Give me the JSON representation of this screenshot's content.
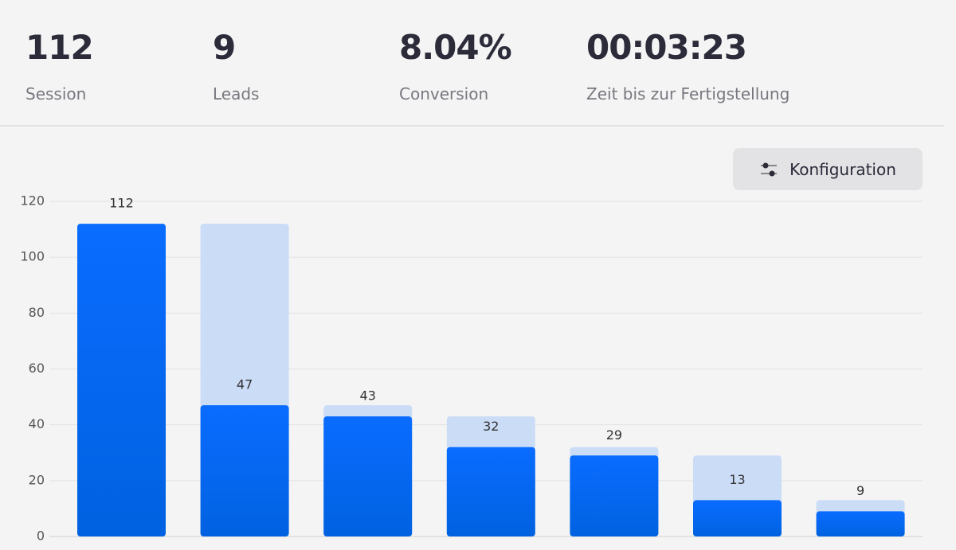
{
  "stats": [
    {
      "value": "112",
      "label": "Session"
    },
    {
      "value": "9",
      "label": "Leads"
    },
    {
      "value": "8.04%",
      "label": "Conversion"
    },
    {
      "value": "00:03:23",
      "label": "Zeit bis zur Fertigstellung"
    }
  ],
  "button": {
    "label": "Konfiguration"
  },
  "chart_data": {
    "type": "bar",
    "values": [
      112,
      47,
      43,
      32,
      29,
      13,
      9
    ],
    "background_values": [
      null,
      112,
      47,
      43,
      32,
      29,
      13
    ],
    "color": "#0a6cff",
    "background_color": "#cbdcf7",
    "ylim": [
      0,
      120
    ],
    "yticks": [
      0,
      20,
      40,
      60,
      80,
      100,
      120
    ],
    "grid": true
  }
}
